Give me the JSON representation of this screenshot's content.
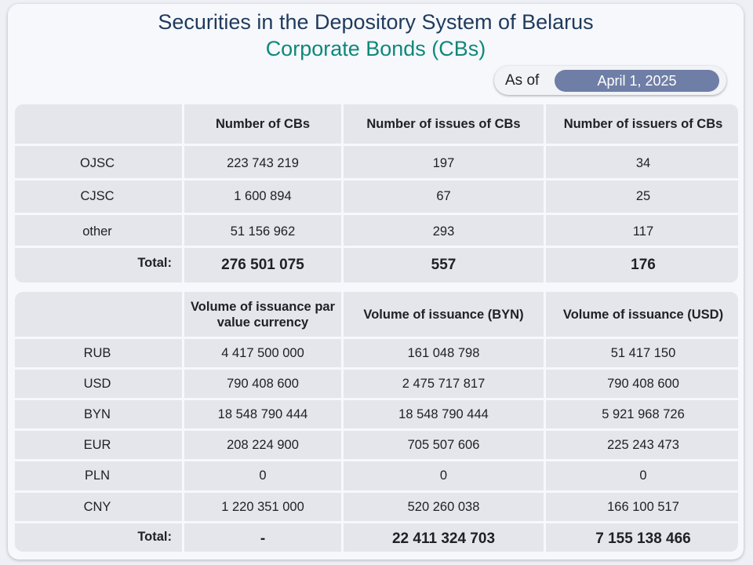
{
  "header": {
    "title": "Securities in the Depository System of Belarus",
    "subtitle": "Corporate Bonds (CBs)",
    "as_of_label": "As of",
    "as_of_date": "April 1, 2025"
  },
  "table1": {
    "headers": [
      "",
      "Number of CBs",
      "Number of issues of CBs",
      "Number of issuers of CBs"
    ],
    "rows": [
      [
        "OJSC",
        "223 743 219",
        "197",
        "34"
      ],
      [
        "CJSC",
        "1 600 894",
        "67",
        "25"
      ],
      [
        "other",
        "51 156 962",
        "293",
        "117"
      ]
    ],
    "total": [
      "Total:",
      "276 501 075",
      "557",
      "176"
    ]
  },
  "table2": {
    "headers": [
      "",
      "Volume of issuance par value currency",
      "Volume of issuance (BYN)",
      "Volume of issuance (USD)"
    ],
    "rows": [
      [
        "RUB",
        "4 417 500 000",
        "161 048 798",
        "51 417 150"
      ],
      [
        "USD",
        "790 408 600",
        "2 475 717 817",
        "790 408 600"
      ],
      [
        "BYN",
        "18 548 790 444",
        "18 548 790 444",
        "5 921 968 726"
      ],
      [
        "EUR",
        "208 224 900",
        "705 507 606",
        "225 243 473"
      ],
      [
        "PLN",
        "0",
        "0",
        "0"
      ],
      [
        "CNY",
        "1 220 351 000",
        "520 260 038",
        "166 100 517"
      ]
    ],
    "total": [
      "Total:",
      "-",
      "22 411 324 703",
      "7 155 138 466"
    ]
  },
  "chart_data": {
    "type": "table",
    "tables": [
      {
        "columns": [
          "",
          "Number of CBs",
          "Number of issues of CBs",
          "Number of issuers of CBs"
        ],
        "rows": [
          [
            "OJSC",
            223743219,
            197,
            34
          ],
          [
            "CJSC",
            1600894,
            67,
            25
          ],
          [
            "other",
            51156962,
            293,
            117
          ],
          [
            "Total:",
            276501075,
            557,
            176
          ]
        ]
      },
      {
        "columns": [
          "",
          "Volume of issuance par value currency",
          "Volume of issuance (BYN)",
          "Volume of issuance (USD)"
        ],
        "rows": [
          [
            "RUB",
            4417500000,
            161048798,
            51417150
          ],
          [
            "USD",
            790408600,
            2475717817,
            790408600
          ],
          [
            "BYN",
            18548790444,
            18548790444,
            5921968726
          ],
          [
            "EUR",
            208224900,
            705507606,
            225243473
          ],
          [
            "PLN",
            0,
            0,
            0
          ],
          [
            "CNY",
            1220351000,
            520260038,
            166100517
          ],
          [
            "Total:",
            "-",
            22411324703,
            7155138466
          ]
        ]
      }
    ]
  }
}
